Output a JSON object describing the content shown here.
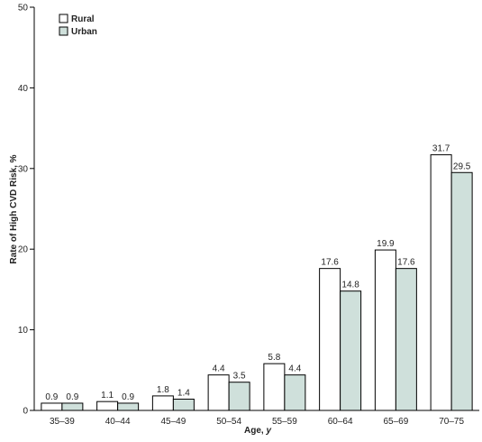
{
  "chart_data": {
    "type": "bar",
    "xlabel": "Age, y",
    "ylabel": "Rate of High CVD Risk, %",
    "ylim": [
      0,
      50
    ],
    "yticks": [
      0,
      10,
      20,
      30,
      40,
      50
    ],
    "categories": [
      "35–39",
      "40–44",
      "45–49",
      "50–54",
      "55–59",
      "60–64",
      "65–69",
      "70–75"
    ],
    "series": [
      {
        "name": "Rural",
        "values": [
          0.9,
          1.1,
          1.8,
          4.4,
          5.8,
          17.6,
          19.9,
          31.7
        ],
        "labels": [
          "0.9",
          "1.1",
          "1.8",
          "4.4",
          "5.8",
          "17.6",
          "19.9",
          "31.7"
        ],
        "color": "#ffffff"
      },
      {
        "name": "Urban",
        "values": [
          0.9,
          0.9,
          1.4,
          3.5,
          4.4,
          14.8,
          17.6,
          29.5
        ],
        "labels": [
          "0.9",
          "0.9",
          "1.4",
          "3.5",
          "4.4",
          "14.8",
          "17.6",
          "29.5"
        ],
        "color": "#cfe0db"
      }
    ],
    "legend_position": "top-left",
    "grid": false
  }
}
